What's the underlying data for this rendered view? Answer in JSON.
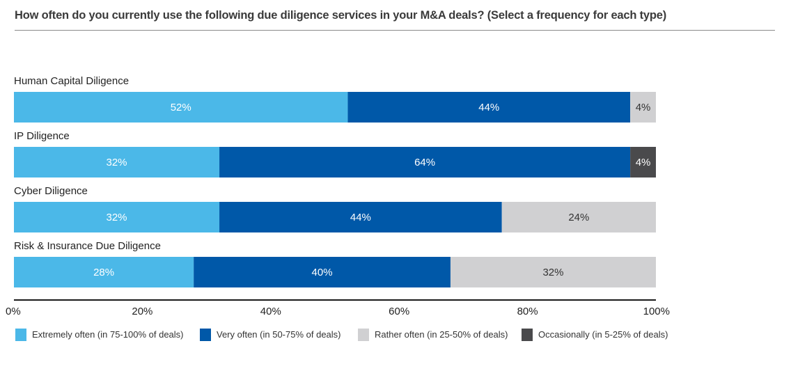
{
  "chart_data": {
    "type": "bar",
    "orientation": "horizontal",
    "stacked": true,
    "title": "How often do you currently use the following due diligence services in your M&A deals? (Select a frequency for each type)",
    "xlabel": "",
    "ylabel": "",
    "xlim": [
      0,
      100
    ],
    "grid": false,
    "legend_position": "bottom",
    "x_ticks": [
      "0%",
      "20%",
      "40%",
      "60%",
      "80%",
      "100%"
    ],
    "x_tick_values": [
      0,
      20,
      40,
      60,
      80,
      100
    ],
    "categories": [
      "Human Capital Diligence",
      "IP Diligence",
      "Cyber Diligence",
      "Risk & Insurance Due Diligence"
    ],
    "series": [
      {
        "name": "Extremely often (in 75-100% of deals)",
        "color": "#4bb8e8",
        "label_color": "#ffffff",
        "values": [
          52,
          32,
          32,
          28
        ]
      },
      {
        "name": "Very often (in 50-75% of deals)",
        "color": "#0058a8",
        "label_color": "#ffffff",
        "values": [
          44,
          64,
          44,
          40
        ]
      },
      {
        "name": "Rather often (in 25-50% of deals)",
        "color": "#d0d0d2",
        "label_color": "#333333",
        "values": [
          4,
          0,
          24,
          32
        ]
      },
      {
        "name": "Occasionally (in 5-25% of deals)",
        "color": "#4a4a4c",
        "label_color": "#ffffff",
        "values": [
          0,
          4,
          0,
          0
        ]
      }
    ],
    "value_suffix": "%"
  }
}
